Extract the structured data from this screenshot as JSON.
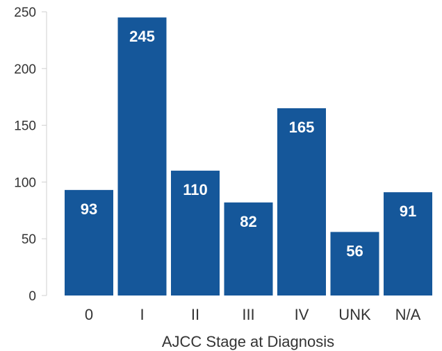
{
  "chart_data": {
    "type": "bar",
    "categories": [
      "0",
      "I",
      "II",
      "III",
      "IV",
      "UNK",
      "N/A"
    ],
    "values": [
      93,
      245,
      110,
      82,
      165,
      56,
      91
    ],
    "title": "",
    "xlabel": "AJCC Stage at Diagnosis",
    "ylabel": "",
    "ylim": [
      0,
      250
    ],
    "yticks": [
      0,
      50,
      100,
      150,
      200,
      250
    ],
    "grid": false,
    "legend": "none",
    "data_labels": [
      "93",
      "245",
      "110",
      "82",
      "165",
      "56",
      "91"
    ],
    "colors": {
      "bar": "#15579a",
      "label": "#ffffff",
      "axis": "#cfcfcf",
      "text": "#333333"
    }
  }
}
